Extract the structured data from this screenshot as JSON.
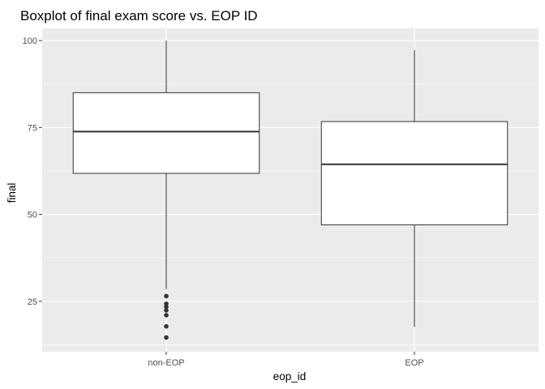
{
  "chart_data": {
    "type": "boxplot",
    "title": "Boxplot of final exam score vs. EOP ID",
    "xlabel": "eop_id",
    "ylabel": "final",
    "ylim": [
      10.5,
      103.5
    ],
    "yticks": [
      25,
      50,
      75,
      100
    ],
    "grid": true,
    "categories": [
      "non-EOP",
      "EOP"
    ],
    "boxes": [
      {
        "category": "non-EOP",
        "min": 28.5,
        "q1": 61.8,
        "median": 73.8,
        "q3": 85.0,
        "max": 100.0,
        "outliers": [
          26.5,
          24.3,
          23.4,
          22.4,
          21.0,
          17.8,
          14.6
        ]
      },
      {
        "category": "EOP",
        "min": 17.6,
        "q1": 47.0,
        "median": 64.4,
        "q3": 76.7,
        "max": 97.2,
        "outliers": []
      }
    ],
    "colors": {
      "panel_background": "#ebebeb",
      "grid_major": "#ffffff",
      "box_fill": "#ffffff",
      "box_line": "#333333",
      "outlier": "#333333"
    }
  }
}
